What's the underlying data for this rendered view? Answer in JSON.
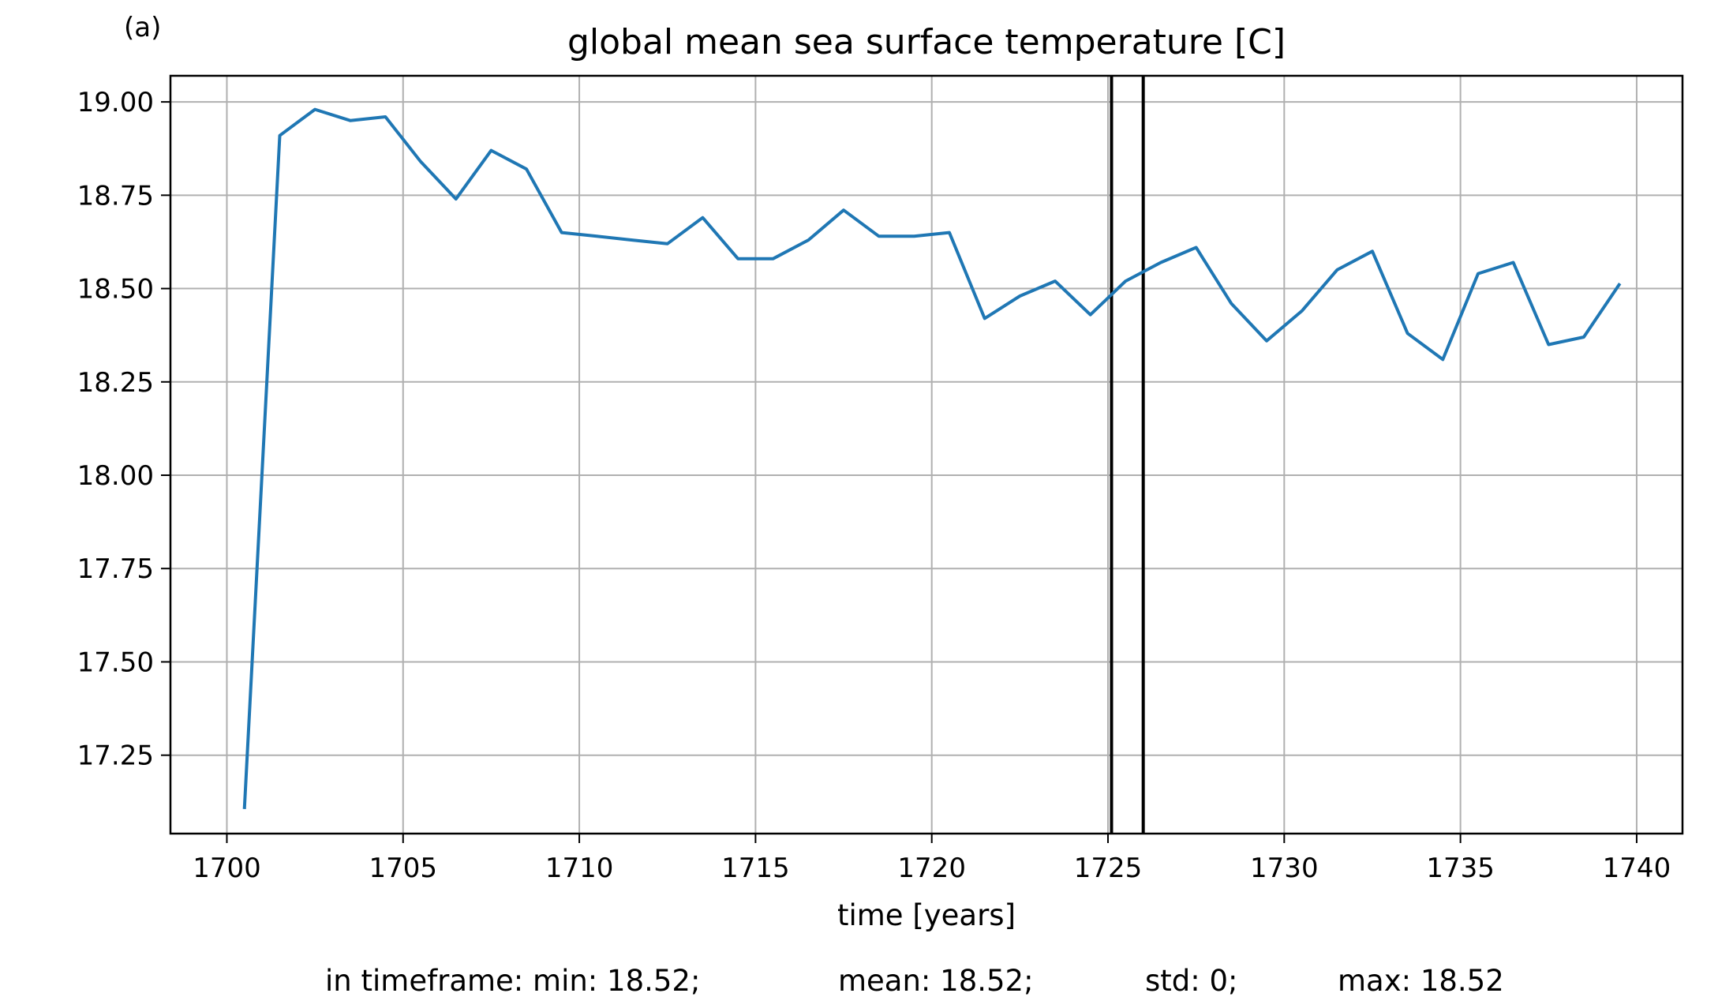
{
  "panel_label": "(a)",
  "stats": {
    "min": "in timeframe: min: 18.52;",
    "mean": "mean: 18.52;",
    "std": "std: 0;",
    "max": "max: 18.52"
  },
  "colors": {
    "series": "#1f77b4",
    "grid": "#b0b0b0",
    "markers": "#000000",
    "frame": "#000000"
  },
  "chart_data": {
    "type": "line",
    "title": "global mean sea surface temperature [C]",
    "xlabel": "time [years]",
    "ylabel": "",
    "xlim": [
      1698.4,
      1741.3
    ],
    "ylim": [
      17.04,
      19.07
    ],
    "grid": true,
    "xticks": [
      1700,
      1705,
      1710,
      1715,
      1720,
      1725,
      1730,
      1735,
      1740
    ],
    "xtick_labels": [
      "1700",
      "1705",
      "1710",
      "1715",
      "1720",
      "1725",
      "1730",
      "1735",
      "1740"
    ],
    "yticks": [
      17.25,
      17.5,
      17.75,
      18.0,
      18.25,
      18.5,
      18.75,
      19.0
    ],
    "ytick_labels": [
      "17.25",
      "17.50",
      "17.75",
      "18.00",
      "18.25",
      "18.50",
      "18.75",
      "19.00"
    ],
    "vertical_lines": [
      1725.1,
      1726.0
    ],
    "series": [
      {
        "x": [
          1700.5,
          1701.5,
          1702.5,
          1703.5,
          1704.5,
          1705.5,
          1706.5,
          1707.5,
          1708.5,
          1709.5,
          1710.5,
          1711.5,
          1712.5,
          1713.5,
          1714.5,
          1715.5,
          1716.5,
          1717.5,
          1718.5,
          1719.5,
          1720.5,
          1721.5,
          1722.5,
          1723.5,
          1724.5,
          1725.5,
          1726.5,
          1727.5,
          1728.5,
          1729.5,
          1730.5,
          1731.5,
          1732.5,
          1733.5,
          1734.5,
          1735.5,
          1736.5,
          1737.5,
          1738.5,
          1739.5
        ],
        "values": [
          17.11,
          18.91,
          18.98,
          18.95,
          18.96,
          18.84,
          18.74,
          18.87,
          18.82,
          18.65,
          18.64,
          18.63,
          18.62,
          18.69,
          18.58,
          18.58,
          18.63,
          18.71,
          18.64,
          18.64,
          18.65,
          18.42,
          18.48,
          18.52,
          18.43,
          18.52,
          18.57,
          18.61,
          18.46,
          18.36,
          18.44,
          18.55,
          18.6,
          18.38,
          18.31,
          18.54,
          18.57,
          18.35,
          18.37,
          18.51
        ]
      }
    ]
  }
}
